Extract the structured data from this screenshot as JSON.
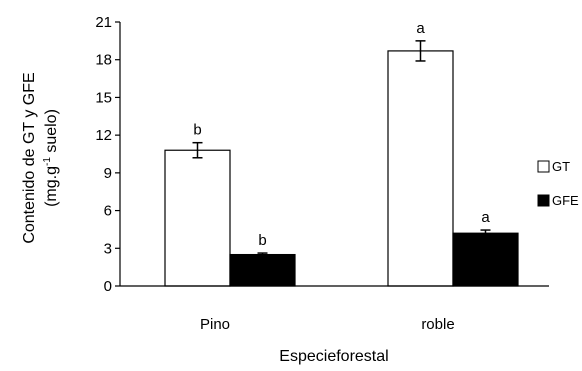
{
  "chart_data": {
    "type": "bar",
    "title": "",
    "xlabel": "Especieforestal",
    "ylabel": {
      "line1": "Contenido de GT y GFE",
      "line2_prefix": "(mg.g",
      "line2_sup": "-1",
      "line2_suffix": " suelo)"
    },
    "ylim": [
      0,
      21
    ],
    "yticks": [
      "0",
      "3",
      "6",
      "9",
      "12",
      "15",
      "18",
      "21"
    ],
    "categories": [
      "Pino",
      "roble"
    ],
    "series": [
      {
        "name": "GT",
        "fill": "#ffffff",
        "values": [
          10.8,
          18.7
        ],
        "errors": [
          0.6,
          0.8
        ],
        "significance": [
          "b",
          "a"
        ]
      },
      {
        "name": "GFE",
        "fill": "#000000",
        "values": [
          2.5,
          4.2
        ],
        "errors": [
          0.12,
          0.25
        ],
        "significance": [
          "b",
          "a"
        ]
      }
    ],
    "grid": false,
    "legend_position": "right"
  }
}
